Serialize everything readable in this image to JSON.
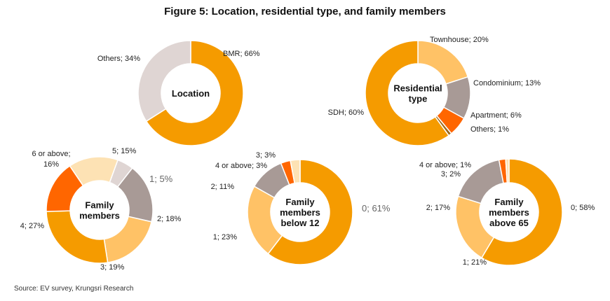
{
  "figure_title": "Figure 5: Location, residential type, and family members",
  "source": "Source: EV survey, Krungsri Research",
  "colors": {
    "orange": "#F59B00",
    "light_orange": "#FFC266",
    "pale_orange": "#FDE2B4",
    "dark_orange": "#FF6600",
    "taupe": "#A89A96",
    "light_gray": "#DFD5D3",
    "brown": "#9C6A1E"
  },
  "chart_data": [
    {
      "type": "pie",
      "donut": true,
      "center_label": [
        "Location"
      ],
      "slices": [
        {
          "name": "BMR",
          "value": 66,
          "label": "BMR; 66%",
          "color": "#F59B00"
        },
        {
          "name": "Others",
          "value": 34,
          "label": "Others; 34%",
          "color": "#DFD5D3"
        }
      ]
    },
    {
      "type": "pie",
      "donut": true,
      "center_label": [
        "Residential",
        "type"
      ],
      "slices": [
        {
          "name": "Townhouse",
          "value": 20,
          "label": "Townhouse; 20%",
          "color": "#FFC266"
        },
        {
          "name": "Condominium",
          "value": 13,
          "label": "Condominium; 13%",
          "color": "#A89A96"
        },
        {
          "name": "Apartment",
          "value": 6,
          "label": "Apartment; 6%",
          "color": "#FF6600"
        },
        {
          "name": "Others",
          "value": 1,
          "label": "Others; 1%",
          "color": "#9C6A1E"
        },
        {
          "name": "SDH",
          "value": 60,
          "label": "SDH; 60%",
          "color": "#F59B00"
        }
      ]
    },
    {
      "type": "pie",
      "donut": true,
      "center_label": [
        "Family",
        "members"
      ],
      "slices": [
        {
          "name": "1",
          "value": 5,
          "label": "1; 5%",
          "color": "#DFD5D3"
        },
        {
          "name": "2",
          "value": 18,
          "label": "2; 18%",
          "color": "#A89A96"
        },
        {
          "name": "3",
          "value": 19,
          "label": "3; 19%",
          "color": "#FFC266"
        },
        {
          "name": "4",
          "value": 27,
          "label": "4; 27%",
          "color": "#F59B00"
        },
        {
          "name": "6 or above",
          "value": 16,
          "label": "6 or above; 16%",
          "color": "#FF6600"
        },
        {
          "name": "5",
          "value": 15,
          "label": "5; 15%",
          "color": "#FDE2B4"
        }
      ]
    },
    {
      "type": "pie",
      "donut": true,
      "center_label": [
        "Family",
        "members",
        "below 12"
      ],
      "slices": [
        {
          "name": "0",
          "value": 61,
          "label": "0; 61%",
          "color": "#F59B00"
        },
        {
          "name": "1",
          "value": 23,
          "label": "1; 23%",
          "color": "#FFC266"
        },
        {
          "name": "2",
          "value": 11,
          "label": "2; 11%",
          "color": "#A89A96"
        },
        {
          "name": "4 or above",
          "value": 3,
          "label": "4 or above; 3%",
          "color": "#FF6600"
        },
        {
          "name": "3",
          "value": 3,
          "label": "3; 3%",
          "color": "#FDE2B4"
        }
      ]
    },
    {
      "type": "pie",
      "donut": true,
      "center_label": [
        "Family",
        "members",
        "above 65"
      ],
      "slices": [
        {
          "name": "0",
          "value": 58,
          "label": "0; 58%",
          "color": "#F59B00"
        },
        {
          "name": "1",
          "value": 21,
          "label": "1; 21%",
          "color": "#FFC266"
        },
        {
          "name": "2",
          "value": 17,
          "label": "2; 17%",
          "color": "#A89A96"
        },
        {
          "name": "3",
          "value": 2,
          "label": "3; 2%",
          "color": "#FF6600"
        },
        {
          "name": "4 or above",
          "value": 1,
          "label": "4 or above; 1%",
          "color": "#FDE2B4"
        }
      ]
    }
  ]
}
